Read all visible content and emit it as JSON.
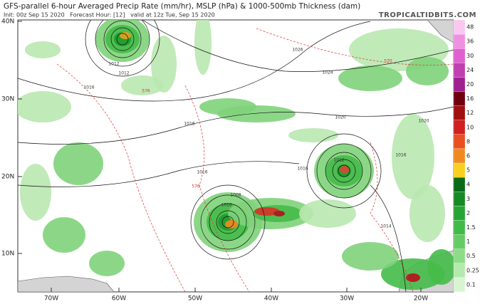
{
  "header": {
    "title": "GFS-parallel 6-hour Averaged Precip Rate (mm/hr), MSLP (hPa) & 1000-500mb Thickness (dam)",
    "subtitle": "Init: 00z Sep 15 2020   Forecast Hour: [12]   valid at 12z Tue, Sep 15 2020",
    "site": "TROPICALTIDBITS.COM"
  },
  "map": {
    "lat_labels": [
      "40N",
      "30N",
      "20N",
      "10N"
    ],
    "lon_labels": [
      "70W",
      "60W",
      "50W",
      "40W",
      "30W",
      "20W"
    ],
    "contour_labels": [
      "1026",
      "1024",
      "1020",
      "1020",
      "1016",
      "1016",
      "1016",
      "1016",
      "1012",
      "1012",
      "1010",
      "1008",
      "1014",
      "1012",
      "1016",
      "576",
      "576",
      "570"
    ]
  },
  "colorbar": {
    "labels": [
      "48",
      "36",
      "30",
      "24",
      "20",
      "16",
      "12",
      "10",
      "8",
      "6",
      "5",
      "4",
      "3",
      "2",
      "1.5",
      "1",
      "0.5",
      "0.25",
      "0.1"
    ]
  }
}
